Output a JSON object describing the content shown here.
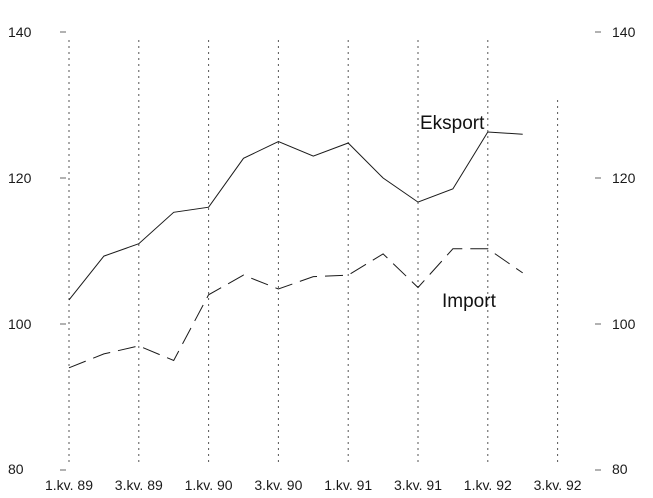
{
  "chart_data": {
    "type": "line",
    "title": "",
    "xlabel": "",
    "ylabel": "",
    "ylim": [
      80,
      140
    ],
    "y_ticks": [
      80,
      100,
      120,
      140
    ],
    "x_tick_labels": [
      "1.kv. 89",
      "3.kv. 89",
      "1.kv. 90",
      "3.kv. 90",
      "1.kv. 91",
      "3.kv. 91",
      "1.kv. 92",
      "3.kv. 92"
    ],
    "x": [
      "1.kv. 89",
      "2.kv. 89",
      "3.kv. 89",
      "4.kv. 89",
      "1.kv. 90",
      "2.kv. 90",
      "3.kv. 90",
      "4.kv. 90",
      "1.kv. 91",
      "2.kv. 91",
      "3.kv. 91",
      "4.kv. 91",
      "1.kv. 92",
      "2.kv. 92"
    ],
    "grid": "vertical dotted",
    "series": [
      {
        "name": "Eksport",
        "style": "solid",
        "color": "#1a1a1a",
        "values": [
          103.3,
          109.3,
          111.0,
          115.3,
          116.0,
          122.7,
          125.0,
          123.0,
          124.8,
          120.0,
          116.7,
          118.5,
          126.3,
          126.0
        ]
      },
      {
        "name": "Import",
        "style": "dashed",
        "color": "#1a1a1a",
        "values": [
          94.0,
          95.9,
          97.0,
          95.0,
          104.0,
          106.7,
          104.8,
          106.5,
          106.7,
          109.6,
          105.0,
          110.3,
          110.3,
          107.0
        ]
      }
    ]
  }
}
